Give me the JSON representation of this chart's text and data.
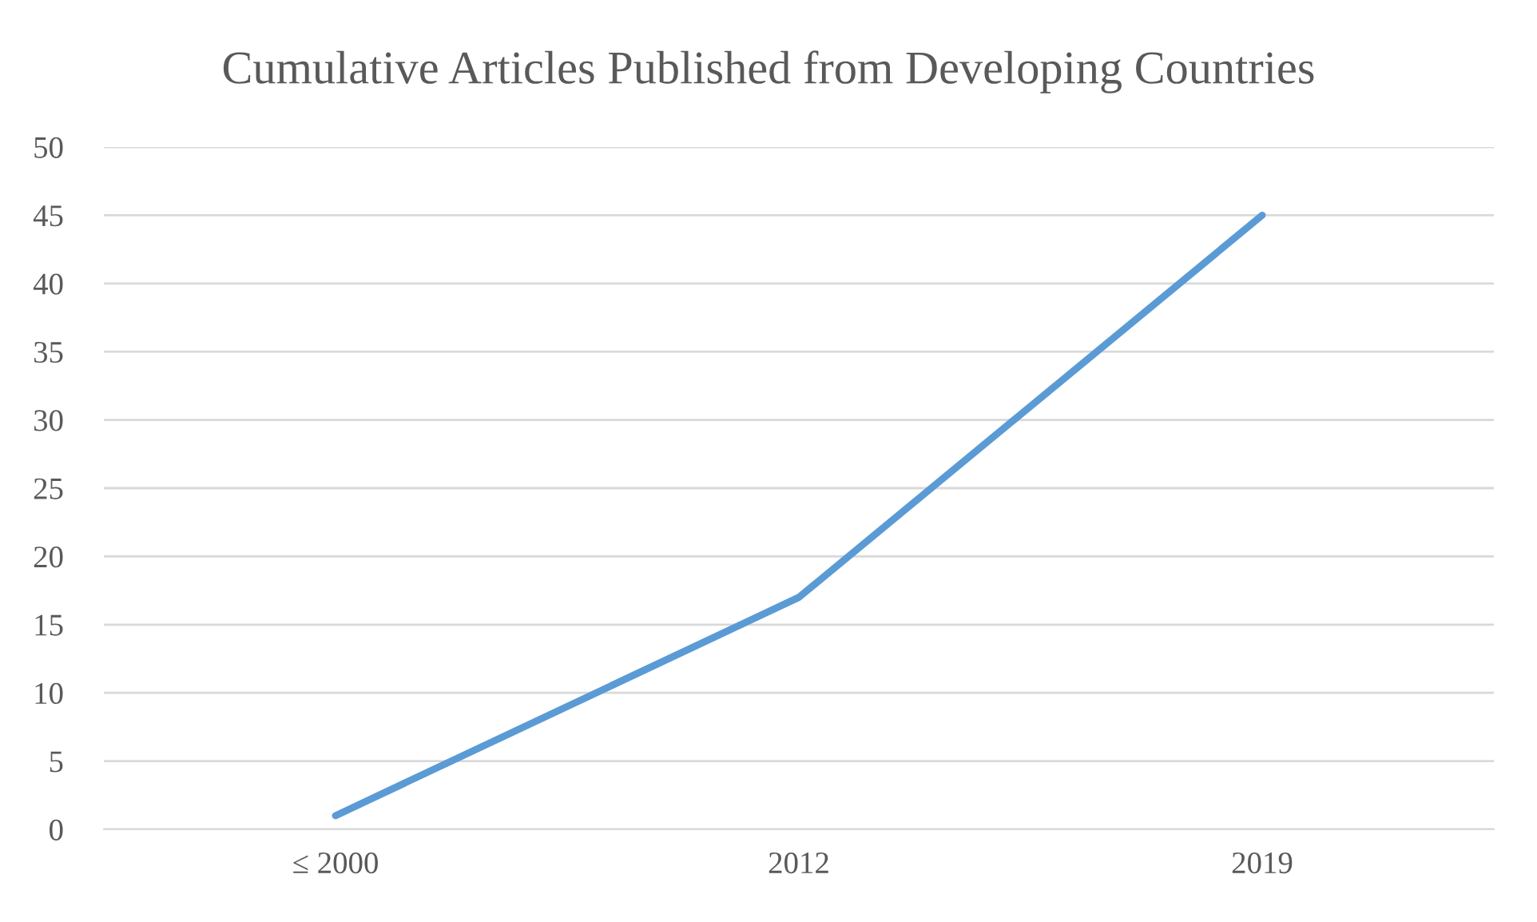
{
  "chart_data": {
    "type": "line",
    "title": "Cumulative Articles Published from Developing Countries",
    "categories": [
      "≤ 2000",
      "2012",
      "2019"
    ],
    "series": [
      {
        "color": "#5b9bd5",
        "values": [
          1,
          17,
          45
        ]
      }
    ],
    "ylim": [
      0,
      50
    ],
    "yticks": [
      0,
      5,
      10,
      15,
      20,
      25,
      30,
      35,
      40,
      45,
      50
    ],
    "grid": "y",
    "marker": "none",
    "line_style": "solid"
  }
}
